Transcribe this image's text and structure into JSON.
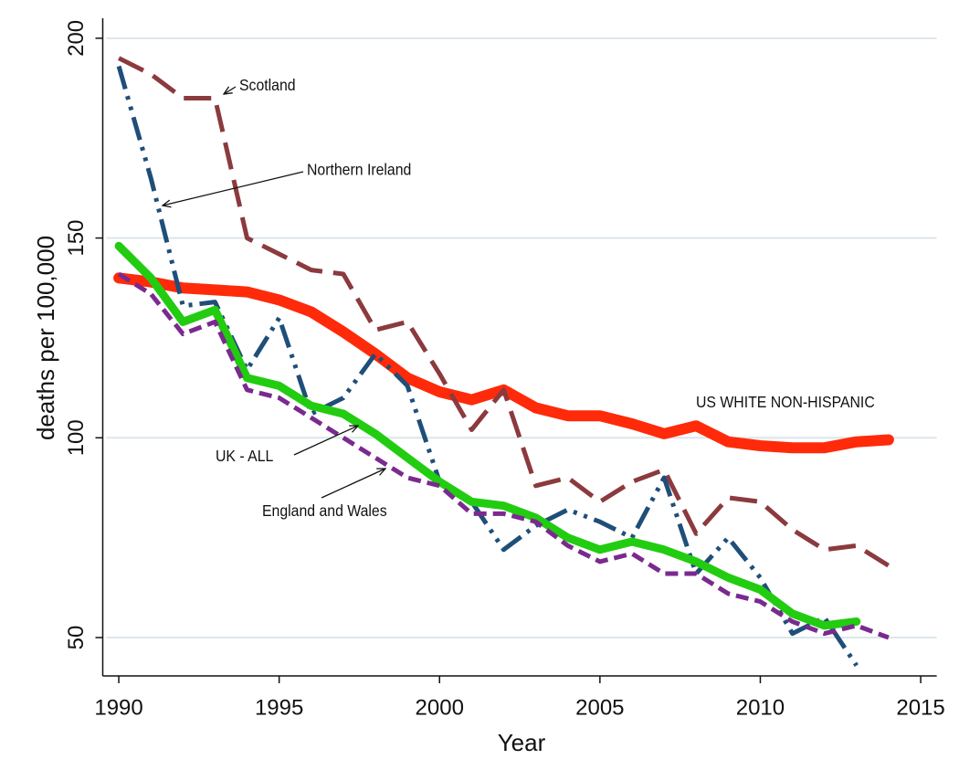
{
  "chart_data": {
    "type": "line",
    "x_label": "Year",
    "y_label": "deaths per 100,000",
    "x": [
      1990,
      1991,
      1992,
      1993,
      1994,
      1995,
      1996,
      1997,
      1998,
      1999,
      2000,
      2001,
      2002,
      2003,
      2004,
      2005,
      2006,
      2007,
      2008,
      2009,
      2010,
      2011,
      2012,
      2013,
      2014
    ],
    "series": [
      {
        "name": "US WHITE NON-HISPANIC",
        "color": "#ff2a0a",
        "values": [
          140,
          139,
          137.5,
          137,
          136.5,
          134.5,
          131.5,
          126.5,
          121,
          115,
          111.5,
          109.5,
          112,
          107.5,
          105.5,
          105.5,
          103.5,
          101,
          103,
          99,
          98,
          97.5,
          97.5,
          99,
          99.5
        ]
      },
      {
        "name": "Scotland",
        "color": "#8b3a3e",
        "values": [
          195,
          191,
          185,
          185,
          150,
          146,
          142,
          141,
          127,
          129,
          116,
          102,
          112,
          88,
          90,
          84,
          89,
          92,
          76,
          85,
          84,
          77,
          72,
          73,
          68
        ]
      },
      {
        "name": "Northern Ireland",
        "color": "#1f4e79",
        "values": [
          193,
          165,
          133,
          134,
          117,
          130,
          106,
          110,
          121,
          113,
          89,
          84,
          72,
          78,
          82,
          79,
          75,
          90,
          66,
          75,
          65,
          51,
          55,
          43,
          null
        ]
      },
      {
        "name": "UK - ALL",
        "color": "#22cc11",
        "values": [
          148,
          140,
          129,
          132,
          115,
          113,
          108,
          106,
          101,
          95,
          89,
          84,
          83,
          80,
          75,
          72,
          74,
          72,
          69,
          65,
          62,
          56,
          53,
          54,
          null
        ]
      },
      {
        "name": "England and Wales",
        "color": "#7a2a8f",
        "values": [
          141,
          136,
          126,
          129,
          112,
          110,
          105,
          100,
          95,
          90,
          88,
          81,
          81,
          79,
          73,
          69,
          71,
          66,
          66,
          61,
          59,
          54,
          51,
          53,
          50
        ]
      }
    ],
    "xlim": [
      1989.5,
      2015.5
    ],
    "xticks": [
      1990,
      1995,
      2000,
      2005,
      2010,
      2015
    ],
    "ylim": [
      40.4,
      205
    ],
    "yticks": [
      50,
      100,
      150,
      200
    ],
    "grid": true
  }
}
